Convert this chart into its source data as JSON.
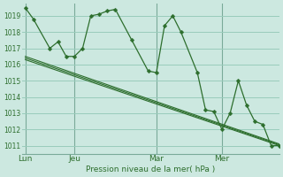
{
  "background_color": "#cce8e0",
  "grid_color": "#99ccbb",
  "line_color": "#2d6e2d",
  "ylabel_text": "Pression niveau de la mer( hPa )",
  "ylim": [
    1010.5,
    1019.75
  ],
  "yticks": [
    1011,
    1012,
    1013,
    1014,
    1015,
    1016,
    1017,
    1018,
    1019
  ],
  "xtick_labels": [
    "Lun",
    "Jeu",
    "Mar",
    "Mer"
  ],
  "xtick_positions": [
    0,
    3,
    8,
    12
  ],
  "vline_positions": [
    0,
    3,
    8,
    12
  ],
  "xlim": [
    -0.2,
    15.5
  ],
  "main_x": [
    0,
    0.5,
    1.5,
    2.0,
    2.5,
    3.0,
    3.5,
    4.0,
    4.5,
    5.0,
    5.5,
    6.5,
    7.5,
    8.0,
    8.5,
    9.0,
    9.5,
    10.5,
    11.0,
    11.5,
    12.0,
    12.5,
    13.0,
    13.5,
    14.0,
    14.5,
    15.0,
    15.5
  ],
  "main_y": [
    1019.5,
    1018.8,
    1017.0,
    1017.4,
    1016.5,
    1016.5,
    1017.0,
    1019.0,
    1019.1,
    1019.3,
    1019.4,
    1017.5,
    1015.6,
    1015.5,
    1018.4,
    1019.0,
    1018.0,
    1015.5,
    1013.2,
    1013.1,
    1012.0,
    1013.0,
    1015.0,
    1013.5,
    1012.5,
    1012.3,
    1011.0,
    1011.0
  ],
  "trend1_x": [
    0,
    15.5
  ],
  "trend1_y": [
    1016.5,
    1011.1
  ],
  "trend2_x": [
    0,
    15.5
  ],
  "trend2_y": [
    1016.4,
    1011.05
  ],
  "trend3_x": [
    0,
    15.5
  ],
  "trend3_y": [
    1016.3,
    1011.0
  ]
}
